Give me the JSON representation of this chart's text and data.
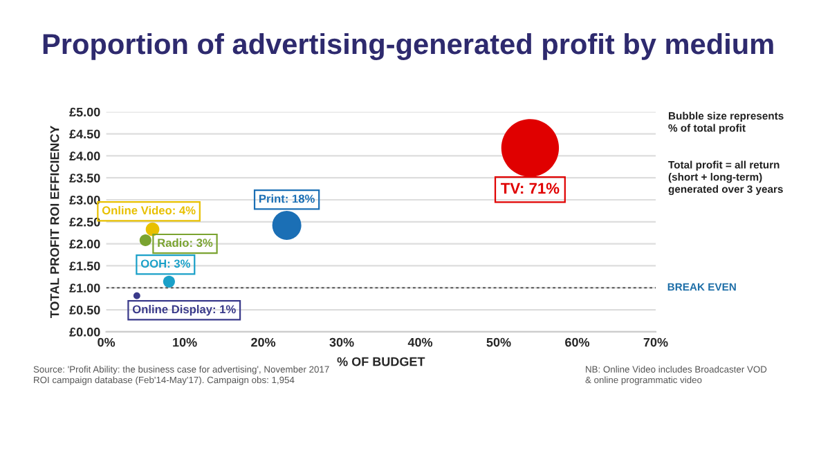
{
  "chart_data": {
    "type": "bubble",
    "title": "Proportion of advertising-generated profit by medium",
    "xlabel": "% OF BUDGET",
    "ylabel": "TOTAL PROFIT ROI EFFICIENCY",
    "x": [
      54,
      23,
      5.9,
      5,
      8,
      3.9
    ],
    "values": [
      4.18,
      2.42,
      2.33,
      2.08,
      1.14,
      0.82
    ],
    "sizes": [
      1,
      0.254,
      0.056,
      0.042,
      0.042,
      0.014
    ],
    "colors": [
      "#e00000",
      "#1b6fb5",
      "#e8c000",
      "#7aa330",
      "#1aa0c8",
      "#3a3a8a"
    ],
    "xlim": [
      0,
      70
    ],
    "xticks": [
      {
        "value": 0,
        "label": "0%"
      },
      {
        "value": 10,
        "label": "10%"
      },
      {
        "value": 20,
        "label": "20%"
      },
      {
        "value": 30,
        "label": "30%"
      },
      {
        "value": 40,
        "label": "40%"
      },
      {
        "value": 50,
        "label": "50%"
      },
      {
        "value": 60,
        "label": "60%"
      },
      {
        "value": 70,
        "label": "70%"
      }
    ],
    "ylim": [
      0,
      5
    ],
    "yticks": [
      {
        "value": 0,
        "label": "£0.00"
      },
      {
        "value": 0.5,
        "label": "£0.50"
      },
      {
        "value": 1,
        "label": "£1.00"
      },
      {
        "value": 1.5,
        "label": "£1.50"
      },
      {
        "value": 2,
        "label": "£2.00"
      },
      {
        "value": 2.5,
        "label": "£2.50"
      },
      {
        "value": 3,
        "label": "£3.00"
      },
      {
        "value": 3.5,
        "label": "£3.50"
      },
      {
        "value": 4,
        "label": "£4.00"
      },
      {
        "value": 4.5,
        "label": "£4.50"
      },
      {
        "value": 5,
        "label": "£5.00"
      }
    ],
    "grid": "y",
    "legend": false,
    "marker": "circle",
    "ref_lines": [
      {
        "axis": "y",
        "value": 1,
        "label": "BREAK EVEN",
        "color": "#555555",
        "line_style": "dashed"
      }
    ],
    "annotations": [
      {
        "text": "TV: 71%",
        "x": 54,
        "y": 4.18
      },
      {
        "text": "Print: 18%",
        "x": 23,
        "y": 2.42
      },
      {
        "text": "Online Video: 4%",
        "x": 5.9,
        "y": 2.33
      },
      {
        "text": "Radio: 3%",
        "x": 5,
        "y": 2.08
      },
      {
        "text": "OOH: 3%",
        "x": 8,
        "y": 1.14
      },
      {
        "text": "Online Display: 1%",
        "x": 3.9,
        "y": 0.82
      },
      "Bubble size represents\n% of total profit",
      "Total profit = all return\n(short + long-term)\ngenerated over 3 years",
      "Source: 'Profit Ability: the business case for advertising', November 2017\nROI campaign database (Feb'14-May'17). Campaign obs: 1,954",
      "NB: Online Video includes Broadcaster VOD\n& online programmatic video"
    ]
  }
}
